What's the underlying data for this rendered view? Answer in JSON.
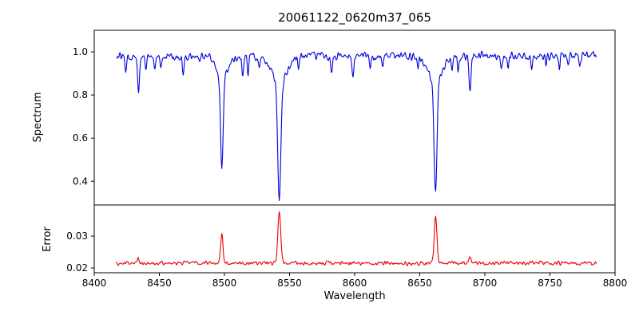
{
  "chart_data": {
    "type": "line",
    "title": "20061122_0620m37_065",
    "xlabel": "Wavelength",
    "xlim": [
      8400,
      8800
    ],
    "x_data_range": [
      8417,
      8786
    ],
    "x_ticks": {
      "values": [
        8400,
        8450,
        8500,
        8550,
        8600,
        8650,
        8700,
        8750,
        8800
      ],
      "labels": [
        "8400",
        "8450",
        "8500",
        "8550",
        "8600",
        "8650",
        "8700",
        "8750",
        "8800"
      ]
    },
    "panels": [
      {
        "name": "spectrum",
        "ylabel": "Spectrum",
        "line_color": "#0000dd",
        "ylim": [
          0.29,
          1.1
        ],
        "y_ticks": {
          "values": [
            0.4,
            0.6,
            0.8,
            1.0
          ],
          "labels": [
            "0.4",
            "0.6",
            "0.8",
            "1.0"
          ]
        },
        "continuum": 0.98,
        "noise_amplitude": 0.025,
        "absorption_lines": [
          {
            "center": 8424.2,
            "depth": 0.055,
            "sigma": 0.6
          },
          {
            "center": 8434.0,
            "depth": 0.175,
            "sigma": 0.7
          },
          {
            "center": 8439.6,
            "depth": 0.06,
            "sigma": 0.6
          },
          {
            "center": 8446.5,
            "depth": 0.07,
            "sigma": 0.6
          },
          {
            "center": 8451.0,
            "depth": 0.04,
            "sigma": 0.5
          },
          {
            "center": 8468.4,
            "depth": 0.09,
            "sigma": 0.7
          },
          {
            "center": 8480.7,
            "depth": 0.04,
            "sigma": 0.5
          },
          {
            "center": 8498.0,
            "depth": 0.525,
            "sigma": 1.0,
            "wing_sigma": 4.5,
            "wing_frac": 0.18
          },
          {
            "center": 8514.1,
            "depth": 0.1,
            "sigma": 0.7
          },
          {
            "center": 8518.1,
            "depth": 0.08,
            "sigma": 0.6
          },
          {
            "center": 8526.7,
            "depth": 0.06,
            "sigma": 0.6
          },
          {
            "center": 8542.1,
            "depth": 0.66,
            "sigma": 1.2,
            "wing_sigma": 5.5,
            "wing_frac": 0.2
          },
          {
            "center": 8556.8,
            "depth": 0.05,
            "sigma": 0.6
          },
          {
            "center": 8582.3,
            "depth": 0.06,
            "sigma": 0.6
          },
          {
            "center": 8598.8,
            "depth": 0.08,
            "sigma": 0.7
          },
          {
            "center": 8611.8,
            "depth": 0.05,
            "sigma": 0.6
          },
          {
            "center": 8621.6,
            "depth": 0.06,
            "sigma": 0.6
          },
          {
            "center": 8648.5,
            "depth": 0.05,
            "sigma": 0.6
          },
          {
            "center": 8662.1,
            "depth": 0.63,
            "sigma": 1.1,
            "wing_sigma": 5.0,
            "wing_frac": 0.2
          },
          {
            "center": 8674.7,
            "depth": 0.08,
            "sigma": 0.6
          },
          {
            "center": 8679.5,
            "depth": 0.06,
            "sigma": 0.6
          },
          {
            "center": 8688.6,
            "depth": 0.16,
            "sigma": 0.8
          },
          {
            "center": 8712.7,
            "depth": 0.055,
            "sigma": 0.6
          },
          {
            "center": 8717.8,
            "depth": 0.05,
            "sigma": 0.6
          },
          {
            "center": 8736.0,
            "depth": 0.055,
            "sigma": 0.6
          },
          {
            "center": 8747.0,
            "depth": 0.045,
            "sigma": 0.5
          },
          {
            "center": 8757.2,
            "depth": 0.05,
            "sigma": 0.6
          },
          {
            "center": 8764.0,
            "depth": 0.055,
            "sigma": 0.6
          },
          {
            "center": 8772.9,
            "depth": 0.05,
            "sigma": 0.6
          }
        ]
      },
      {
        "name": "error",
        "ylabel": "Error",
        "line_color": "#ee0000",
        "ylim": [
          0.0185,
          0.0398
        ],
        "y_ticks": {
          "values": [
            0.02,
            0.03
          ],
          "labels": [
            "0.02",
            "0.03"
          ]
        },
        "baseline": 0.0215,
        "noise_amplitude": 0.0009,
        "error_peaks": [
          {
            "center": 8434.0,
            "height": 0.0018,
            "sigma": 0.7
          },
          {
            "center": 8498.0,
            "height": 0.0095,
            "sigma": 0.9
          },
          {
            "center": 8542.1,
            "height": 0.016,
            "sigma": 1.1
          },
          {
            "center": 8662.1,
            "height": 0.015,
            "sigma": 1.0
          },
          {
            "center": 8688.6,
            "height": 0.0018,
            "sigma": 0.8
          }
        ]
      }
    ]
  }
}
